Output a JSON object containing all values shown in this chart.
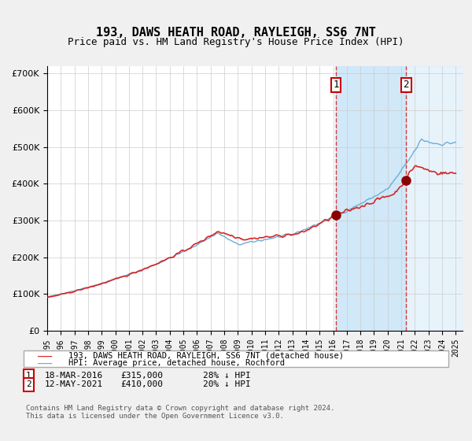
{
  "title": "193, DAWS HEATH ROAD, RAYLEIGH, SS6 7NT",
  "subtitle": "Price paid vs. HM Land Registry's House Price Index (HPI)",
  "legend_line1": "193, DAWS HEATH ROAD, RAYLEIGH, SS6 7NT (detached house)",
  "legend_line2": "HPI: Average price, detached house, Rochford",
  "annotation1_label": "1",
  "annotation1_date": "18-MAR-2016",
  "annotation1_price": 315000,
  "annotation1_text": "18-MAR-2016    £315,000    28% ↓ HPI",
  "annotation2_label": "2",
  "annotation2_date": "12-MAY-2021",
  "annotation2_price": 410000,
  "annotation2_text": "12-MAY-2021    £410,000    20% ↓ HPI",
  "purchase1_x": 2016.21,
  "purchase2_x": 2021.36,
  "purchase1_y": 315000,
  "purchase2_y": 410000,
  "footer": "Contains HM Land Registry data © Crown copyright and database right 2024.\nThis data is licensed under the Open Government Licence v3.0.",
  "hpi_color": "#6baed6",
  "property_color": "#d62728",
  "dot_color": "#8B0000",
  "shade_color": "#d0e8f8",
  "vline_color": "#d62728",
  "background_color": "#f0f0f0",
  "plot_bg_color": "#ffffff",
  "ylim": [
    0,
    720000
  ],
  "xlim_start": 1995.0,
  "xlim_end": 2025.5
}
